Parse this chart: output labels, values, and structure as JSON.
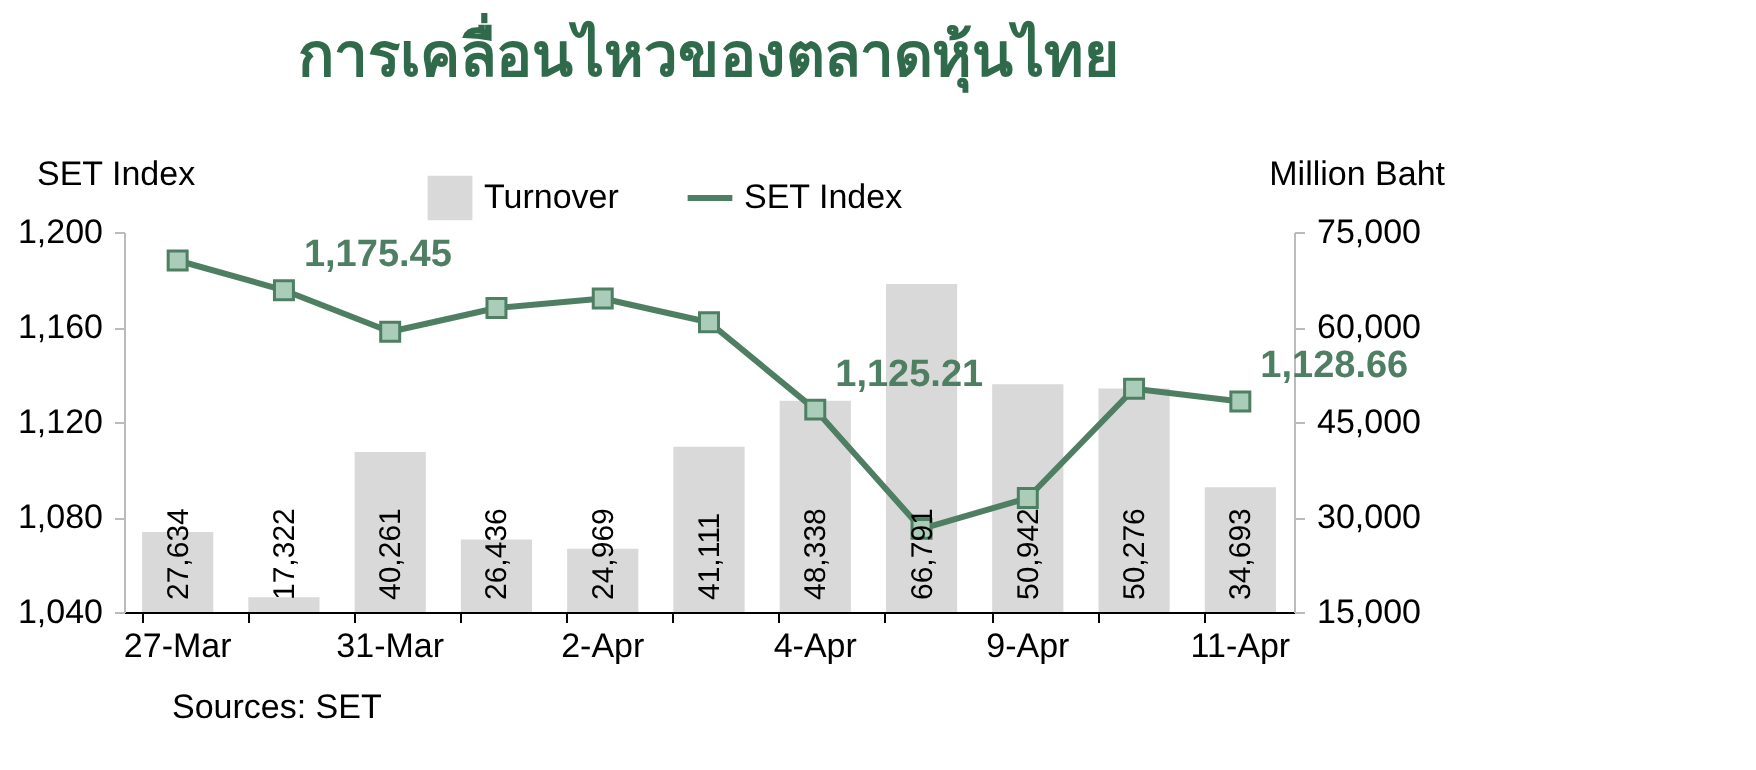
{
  "chart_data": {
    "type": "bar",
    "title": "การเคลื่อนไหวของตลาดหุ้นไทย",
    "ylabel": "SET Index",
    "y2label": "Million Baht",
    "categories": [
      "27-Mar",
      null,
      "31-Mar",
      null,
      "2-Apr",
      null,
      "4-Apr",
      null,
      "9-Apr",
      null,
      "11-Apr"
    ],
    "series": [
      {
        "name": "Turnover",
        "type": "bar",
        "axis": "y2",
        "color": "#d9d9d9",
        "values": [
          27634,
          17322,
          40261,
          26436,
          24969,
          41111,
          48338,
          66791,
          50942,
          50276,
          34693
        ],
        "value_labels": [
          "27,634",
          "17,322",
          "40,261",
          "26,436",
          "24,969",
          "41,111",
          "48,338",
          "66,791",
          "50,942",
          "50,276",
          "34,693"
        ]
      },
      {
        "name": "SET Index",
        "type": "line",
        "color": "#4f7f63",
        "values": [
          1188,
          1175.45,
          1158,
          1168,
          1172,
          1162,
          1125.21,
          1075,
          1088,
          1134,
          1128.66
        ],
        "value_labels": [
          null,
          "1,175.45",
          null,
          null,
          null,
          null,
          "1,125.21",
          null,
          null,
          null,
          "1,128.66"
        ]
      }
    ],
    "ylim": [
      1040,
      1200
    ],
    "yticks": [
      {
        "value": 1040,
        "label": "1,040"
      },
      {
        "value": 1080,
        "label": "1,080"
      },
      {
        "value": 1120,
        "label": "1,120"
      },
      {
        "value": 1160,
        "label": "1,160"
      },
      {
        "value": 1200,
        "label": "1,200"
      }
    ],
    "y2lim": [
      15000,
      75000
    ],
    "y2ticks": [
      {
        "value": 15000,
        "label": "15,000"
      },
      {
        "value": 30000,
        "label": "30,000"
      },
      {
        "value": 45000,
        "label": "45,000"
      },
      {
        "value": 60000,
        "label": "60,000"
      },
      {
        "value": 75000,
        "label": "75,000"
      }
    ],
    "marker": "square",
    "legend": "top",
    "grid": false,
    "annotations": [
      "Sources: SET"
    ]
  }
}
